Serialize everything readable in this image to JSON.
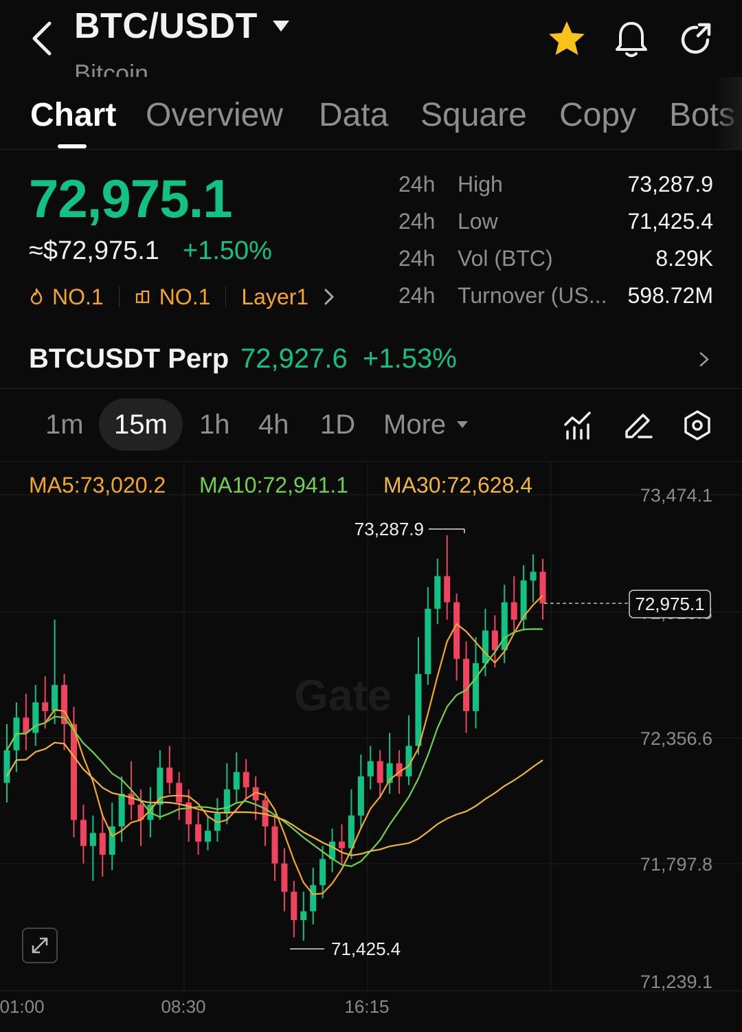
{
  "header": {
    "pair": "BTC/USDT",
    "coin_name": "Bitcoin"
  },
  "tabs": [
    {
      "label": "Chart",
      "active": true
    },
    {
      "label": "Overview"
    },
    {
      "label": "Data"
    },
    {
      "label": "Square"
    },
    {
      "label": "Copy"
    },
    {
      "label": "Bots"
    }
  ],
  "price": {
    "last": "72,975.1",
    "usd": "≈$72,975.1",
    "change": "+1.50%",
    "rank1": "NO.1",
    "rank2": "NO.1",
    "sector": "Layer1"
  },
  "stats": [
    {
      "period": "24h",
      "label": "High",
      "value": "73,287.9"
    },
    {
      "period": "24h",
      "label": "Low",
      "value": "71,425.4"
    },
    {
      "period": "24h",
      "label": "Vol (BTC)",
      "value": "8.29K"
    },
    {
      "period": "24h",
      "label": "Turnover (US...",
      "value": "598.72M"
    }
  ],
  "perp": {
    "name": "BTCUSDT Perp",
    "price": "72,927.6",
    "change": "+1.53%"
  },
  "intervals": {
    "items": [
      "1m",
      "15m",
      "1h",
      "4h",
      "1D"
    ],
    "selected": "15m",
    "more": "More"
  },
  "chart": {
    "ma5": "MA5:73,020.2",
    "ma10": "MA10:72,941.1",
    "ma30": "MA30:72,628.4",
    "y_labels": [
      "73,474.1",
      "72,915.3",
      "72,356.6",
      "71,797.8",
      "71,239.1"
    ],
    "x_labels": [
      "01:00",
      "08:30",
      "16:15"
    ],
    "high_label": "73,287.9",
    "low_label": "71,425.4",
    "current_tag": "72,975.1",
    "watermark": "Gate",
    "colors": {
      "up": "#12c285",
      "down": "#f0445e",
      "ma5": "#f5a623",
      "ma10": "#6fd14d",
      "ma30": "#f0b43a"
    }
  },
  "chart_data": {
    "type": "line",
    "title": "",
    "ylim": [
      71239.1,
      73474.1
    ],
    "x_ticks": [
      "01:00",
      "08:30",
      "16:15"
    ],
    "series": [
      {
        "name": "MA5",
        "last": 73020.2
      },
      {
        "name": "MA10",
        "last": 72941.1
      },
      {
        "name": "MA30",
        "last": 72628.4
      }
    ],
    "high": 73287.9,
    "low": 71425.4,
    "last": 72975.1
  }
}
